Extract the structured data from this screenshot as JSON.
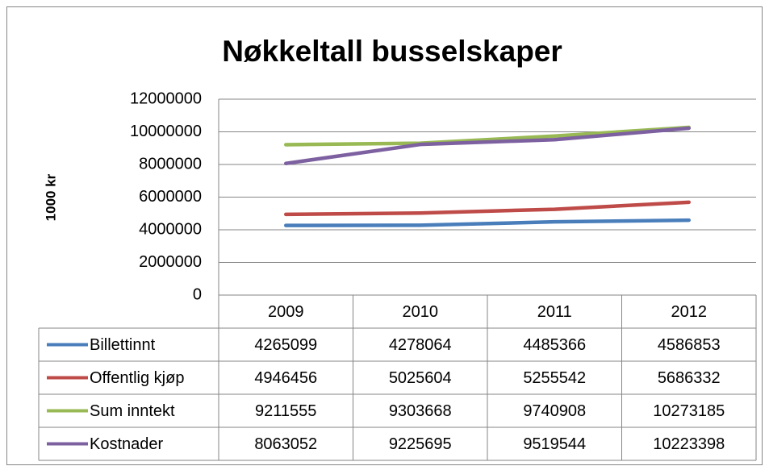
{
  "chart_data": {
    "type": "line",
    "title": "Nøkkeltall busselskaper",
    "y_label": "1000 kr",
    "categories": [
      "2009",
      "2010",
      "2011",
      "2012"
    ],
    "series": [
      {
        "name": "Billettinnt",
        "color": "#4a7ebb",
        "values": [
          4265099,
          4278064,
          4485366,
          4586853
        ]
      },
      {
        "name": "Offentlig kjøp",
        "color": "#be4b48",
        "values": [
          4946456,
          5025604,
          5255542,
          5686332
        ]
      },
      {
        "name": "Sum inntekt",
        "color": "#98b954",
        "values": [
          9211555,
          9303668,
          9740908,
          10273185
        ]
      },
      {
        "name": "Kostnader",
        "color": "#7d60a0",
        "values": [
          8063052,
          9225695,
          9519544,
          10223398
        ]
      }
    ],
    "ylim": [
      0,
      12000000
    ],
    "yticks": [
      0,
      2000000,
      4000000,
      6000000,
      8000000,
      10000000,
      12000000
    ],
    "grid": true,
    "data_table": true
  }
}
